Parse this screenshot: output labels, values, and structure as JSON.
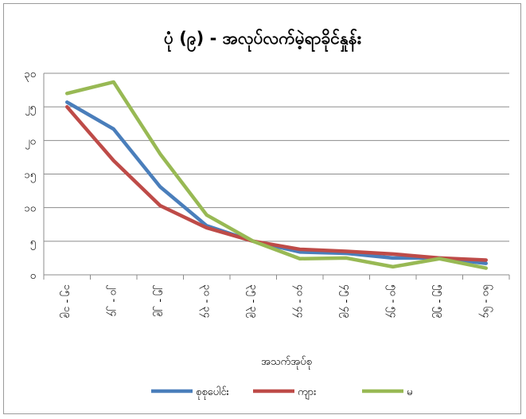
{
  "chart_data": {
    "type": "line",
    "title": "ပုံ (၉) - အလုပ်လက်မဲ့ရာခိုင်နှုန်း",
    "xlabel": "အသက်အုပ်စု",
    "ylabel": "",
    "categories": [
      "၁၅ - ၁၉",
      "၂၀ - ၂၄",
      "၂၅ - ၂၉",
      "၃၀ - ၃၄",
      "၃၅ - ၃၉",
      "၄၀ - ၄၄",
      "၄၅ - ၄၉",
      "၅၀ - ၅၄",
      "၅၅ - ၅၉",
      "၆၀ - ၆၄"
    ],
    "ylim": [
      0,
      30
    ],
    "yticks": [
      0,
      5,
      10,
      15,
      20,
      25,
      30
    ],
    "ytick_labels": [
      "၀",
      "၅",
      "၁၀",
      "၁၅",
      "၂၀",
      "၂၅",
      "၃၀"
    ],
    "grid": true,
    "legend": "bottom",
    "series": [
      {
        "name": "စုစုပေါင်း",
        "color": "#4a7ebb",
        "values": [
          25.7,
          21.7,
          13.1,
          7.3,
          5.0,
          3.4,
          3.2,
          2.5,
          2.5,
          1.7
        ]
      },
      {
        "name": "ကျား",
        "color": "#be4b48",
        "values": [
          25.0,
          17.0,
          10.3,
          7.0,
          5.0,
          3.8,
          3.5,
          3.1,
          2.5,
          2.2
        ]
      },
      {
        "name": "မ",
        "color": "#98b954",
        "values": [
          27.0,
          28.7,
          18.0,
          8.9,
          5.0,
          2.4,
          2.5,
          1.2,
          2.4,
          1.0
        ]
      }
    ]
  }
}
